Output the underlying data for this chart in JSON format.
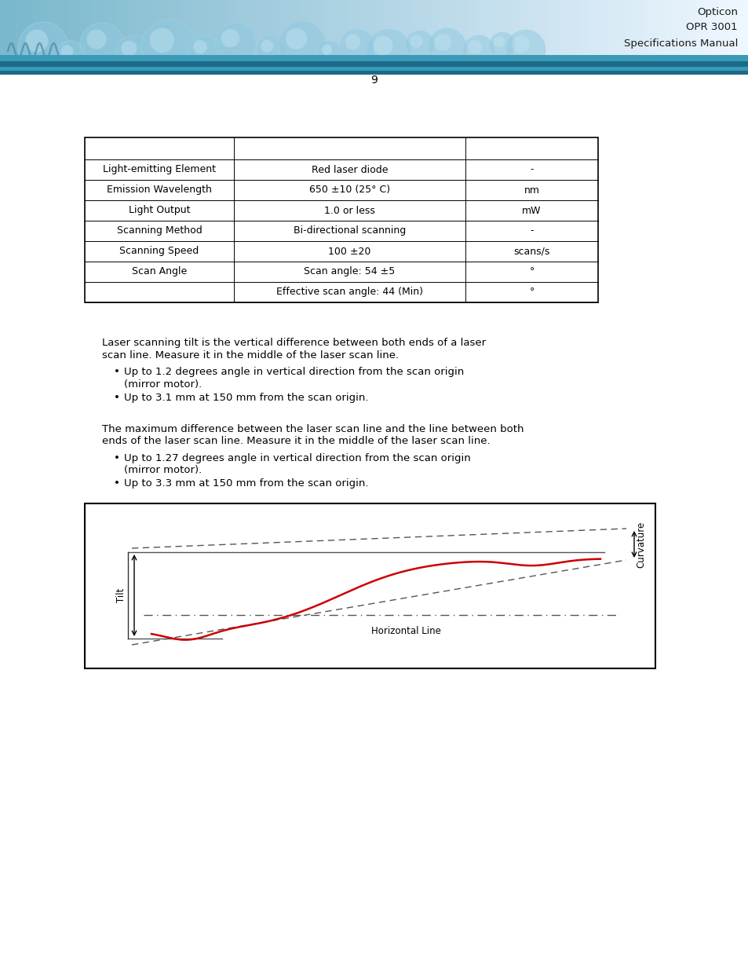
{
  "header_text": [
    "Opticon",
    "OPR 3001",
    "Specifications Manual"
  ],
  "table_rows": [
    [
      "",
      "",
      ""
    ],
    [
      "Light-emitting Element",
      "Red laser diode",
      "-"
    ],
    [
      "Emission Wavelength",
      "650 ±10 (25° C)",
      "nm"
    ],
    [
      "Light Output",
      "1.0 or less",
      "mW"
    ],
    [
      "Scanning Method",
      "Bi-directional scanning",
      "-"
    ],
    [
      "Scanning Speed",
      "100 ±20",
      "scans/s"
    ],
    [
      "Scan Angle",
      "Scan angle: 54 ±5",
      "°"
    ],
    [
      "",
      "Effective scan angle: 44 (Min)",
      "°"
    ]
  ],
  "tilt_para1": "Laser scanning tilt is the vertical difference between both ends of a laser scan line. Measure it in the middle of the laser scan line.",
  "tilt_bullets": [
    "Up to 1.2 degrees angle in vertical direction from the scan origin (mirror motor).",
    "Up to 3.1 mm at 150 mm from the scan origin."
  ],
  "curv_para1": "The maximum difference between the laser scan line and the line between both ends of the laser scan line. Measure it in the middle of the laser scan line.",
  "curv_bullets": [
    "Up to 1.27 degrees angle in vertical direction from the scan origin (mirror motor).",
    "Up to 3.3 mm at 150 mm from the scan origin."
  ],
  "footer_text": "9",
  "page_bg": "#ffffff",
  "text_color": "#000000",
  "body_font_size": 9.5
}
